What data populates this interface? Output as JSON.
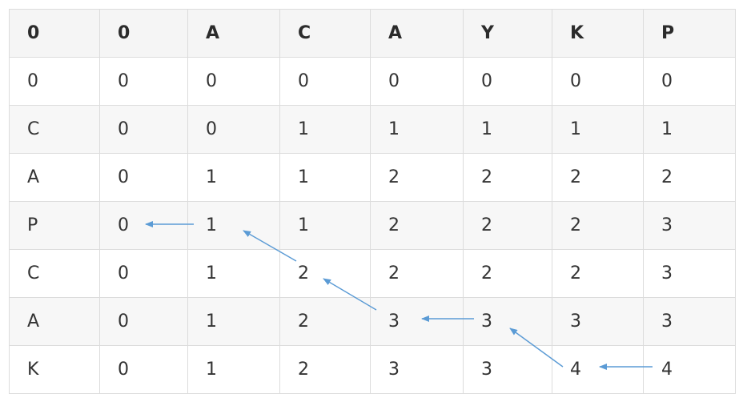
{
  "table": {
    "header": [
      "0",
      "0",
      "A",
      "C",
      "A",
      "Y",
      "K",
      "P"
    ],
    "rows": [
      [
        "0",
        "0",
        "0",
        "0",
        "0",
        "0",
        "0",
        "0"
      ],
      [
        "C",
        "0",
        "0",
        "1",
        "1",
        "1",
        "1",
        "1"
      ],
      [
        "A",
        "0",
        "1",
        "1",
        "2",
        "2",
        "2",
        "2"
      ],
      [
        "P",
        "0",
        "1",
        "1",
        "2",
        "2",
        "2",
        "3"
      ],
      [
        "C",
        "0",
        "1",
        "2",
        "2",
        "2",
        "2",
        "3"
      ],
      [
        "A",
        "0",
        "1",
        "2",
        "3",
        "3",
        "3",
        "3"
      ],
      [
        "K",
        "0",
        "1",
        "2",
        "3",
        "3",
        "4",
        "4"
      ]
    ]
  },
  "colors": {
    "arrow": "#5b9bd5",
    "border": "#dcdcdc",
    "header_bg": "#f5f5f5",
    "stripe_bg": "#f7f7f7"
  }
}
